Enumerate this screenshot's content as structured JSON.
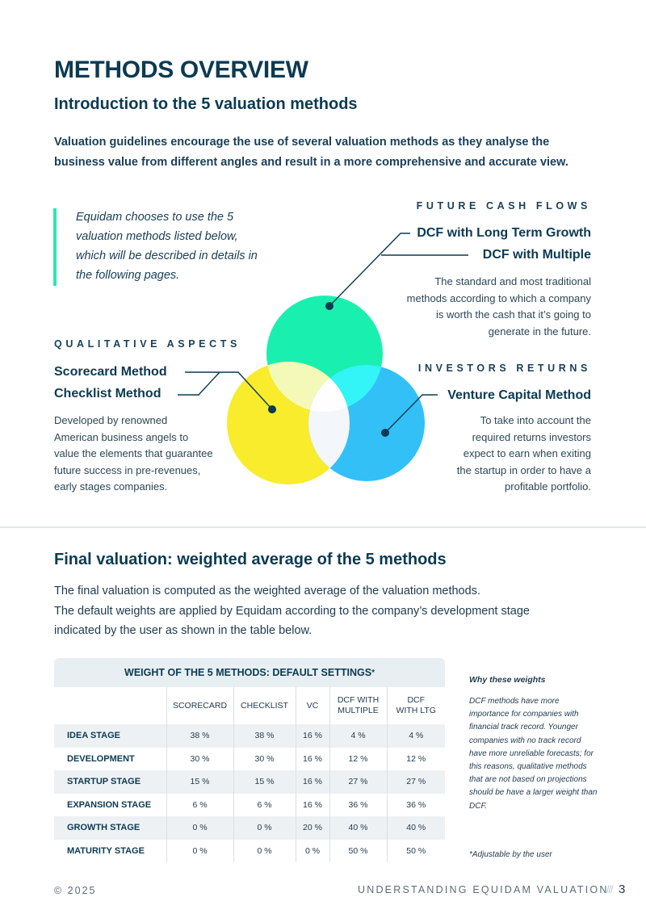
{
  "header": {
    "title": "METHODS OVERVIEW",
    "subtitle": "Introduction to the 5 valuation methods",
    "intro": "Valuation guidelines encourage the use of several valuation methods as they analyse the business value from different angles and result in a more comprehensive and accurate view."
  },
  "quote": {
    "line1": "Equidam chooses to use the 5",
    "line2": "valuation methods listed below,",
    "line3": "which will be described in details in",
    "line4": "the following pages."
  },
  "future_cash_flows": {
    "label": "FUTURE CASH FLOWS",
    "method1": "DCF with Long Term Growth",
    "method2": "DCF with Multiple",
    "desc1": "The standard and most traditional",
    "desc2": "methods according to which a company",
    "desc3": "is worth the cash that it’s going to",
    "desc4": "generate in the future."
  },
  "qualitative_aspects": {
    "label": "QUALITATIVE ASPECTS",
    "method1": "Scorecard Method",
    "method2": "Checklist Method",
    "desc1": "Developed by renowned",
    "desc2": "American business angels to",
    "desc3": "value the elements that guarantee",
    "desc4": "future success in pre-revenues,",
    "desc5": "early stages companies."
  },
  "investors_returns": {
    "label": "INVESTORS RETURNS",
    "method1": "Venture Capital Method",
    "desc1": "To take into account the",
    "desc2": "required returns investors",
    "desc3": "expect to earn when exiting",
    "desc4": "the startup in order to have a",
    "desc5": "profitable portfolio."
  },
  "colors": {
    "green_circle": "#19f0b0",
    "yellow_circle": "#f8ec2c",
    "blue_circle": "#33c0f7",
    "accent_bar": "#2ee6b0",
    "heading": "#0c3a52"
  },
  "final": {
    "title": "Final valuation: weighted average of the 5 methods",
    "line1": "The final valuation is computed as the weighted average of the valuation methods.",
    "line2": "The default weights are applied by Equidam according to the company’s development stage",
    "line3": "indicated by the user as shown in the table below."
  },
  "table": {
    "title": "WEIGHT OF THE 5 METHODS: DEFAULT SETTINGS",
    "title_mark": "*",
    "columns": {
      "scorecard": "SCORECARD",
      "checklist": "CHECKLIST",
      "vc": "VC",
      "dcf_multiple_1": "DCF WITH",
      "dcf_multiple_2": "MULTIPLE",
      "dcf_ltg_1": "DCF",
      "dcf_ltg_2": "WITH LTG"
    },
    "rows": [
      {
        "stage": "IDEA STAGE",
        "scorecard": "38 %",
        "checklist": "38 %",
        "vc": "16 %",
        "dcf_multiple": "4 %",
        "dcf_ltg": "4 %"
      },
      {
        "stage": "DEVELOPMENT",
        "scorecard": "30 %",
        "checklist": "30 %",
        "vc": "16 %",
        "dcf_multiple": "12 %",
        "dcf_ltg": "12 %"
      },
      {
        "stage": "STARTUP STAGE",
        "scorecard": "15 %",
        "checklist": "15 %",
        "vc": "16 %",
        "dcf_multiple": "27 %",
        "dcf_ltg": "27 %"
      },
      {
        "stage": "EXPANSION STAGE",
        "scorecard": "6 %",
        "checklist": "6 %",
        "vc": "16 %",
        "dcf_multiple": "36 %",
        "dcf_ltg": "36 %"
      },
      {
        "stage": "GROWTH STAGE",
        "scorecard": "0 %",
        "checklist": "0 %",
        "vc": "20 %",
        "dcf_multiple": "40 %",
        "dcf_ltg": "40 %"
      },
      {
        "stage": "MATURITY STAGE",
        "scorecard": "0 %",
        "checklist": "0 %",
        "vc": "0 %",
        "dcf_multiple": "50 %",
        "dcf_ltg": "50 %"
      }
    ]
  },
  "why": {
    "title": "Why these weights",
    "text": "DCF methods have more importance for companies with financial track record. Younger companies with no track record have more unreliable forecasts; for this reasons, qualitative methods that are not based on projections should be have a larger weight than DCF.",
    "adjustable": "*Adjustable by the user"
  },
  "footer": {
    "copyright": "© 2025",
    "doc_title": "UNDERSTANDING EQUIDAM VALUATION",
    "separator": "///",
    "page": "3"
  }
}
